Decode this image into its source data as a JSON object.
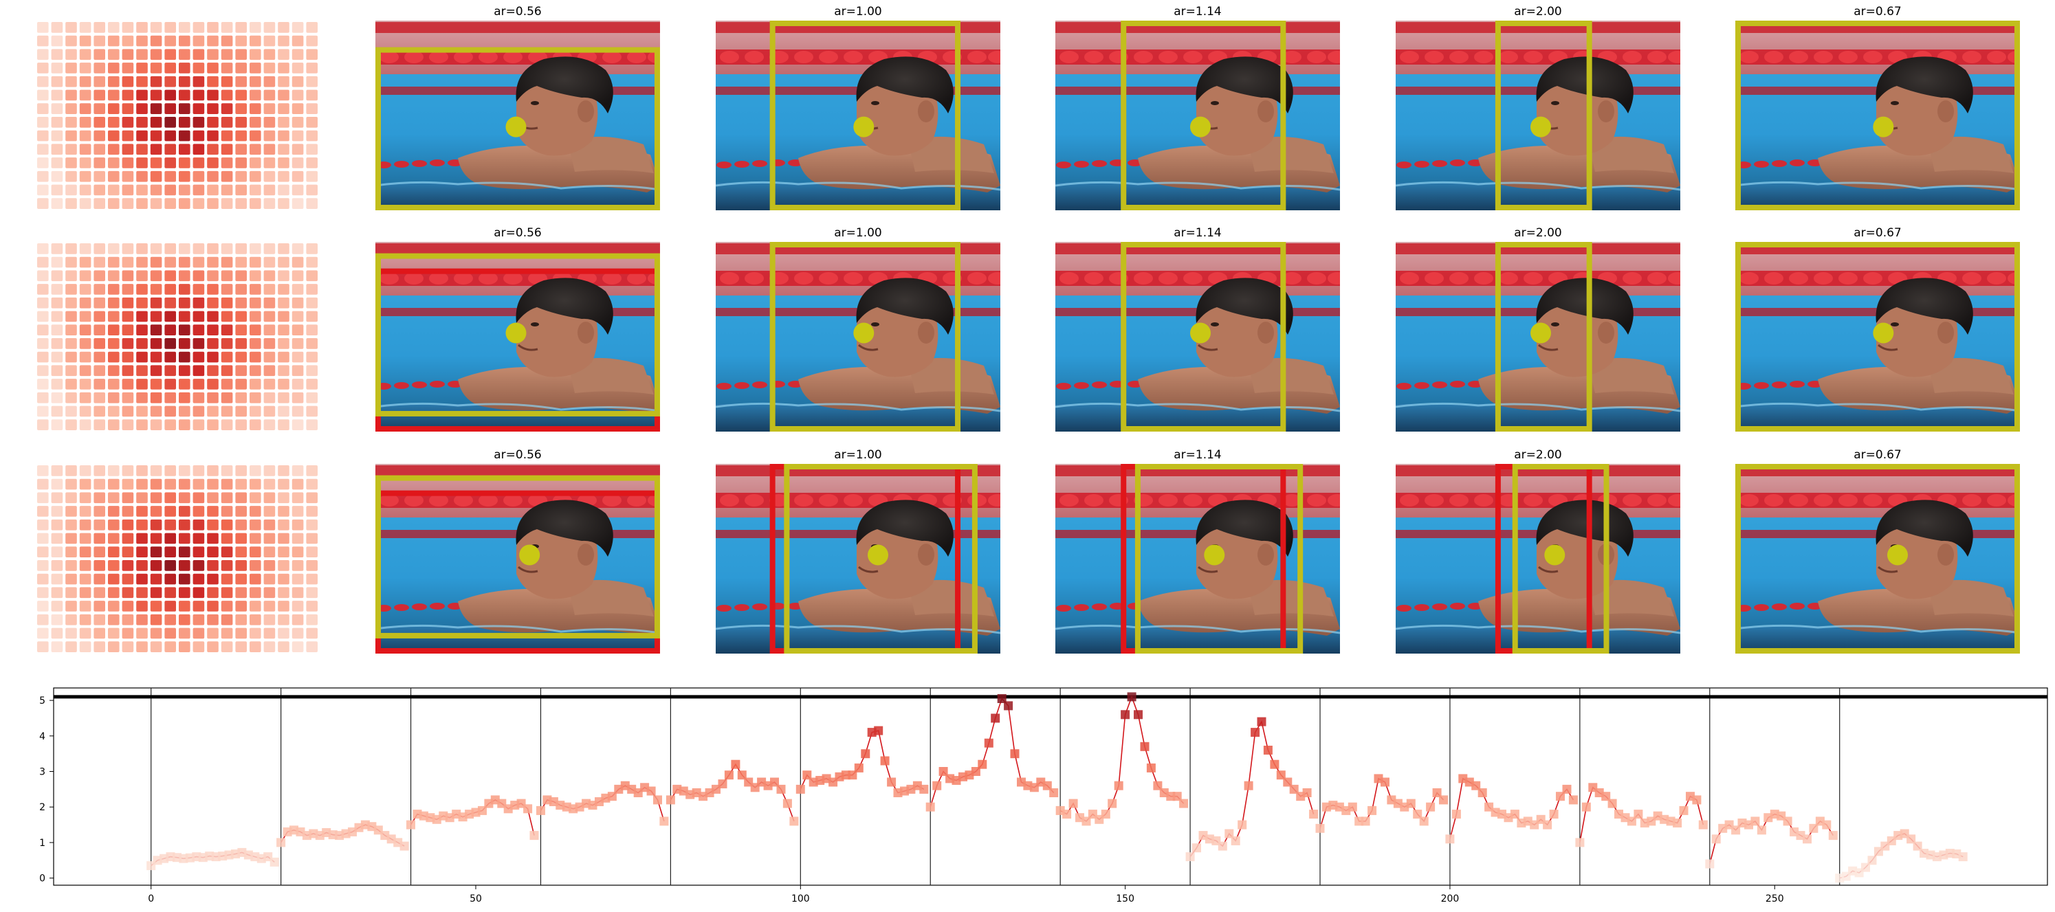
{
  "panels": {
    "rows": [
      {
        "heatmap_name": "saliency-heatmap-row-1",
        "crops": [
          {
            "title": "ar=0.56",
            "yellow": [
              0,
              0.14,
              1.0,
              1.0
            ],
            "red": null
          },
          {
            "title": "ar=1.00",
            "yellow": [
              0.19,
              0,
              0.86,
              1.0
            ],
            "red": null
          },
          {
            "title": "ar=1.14",
            "yellow": [
              0.23,
              0,
              0.81,
              1.0
            ],
            "red": null
          },
          {
            "title": "ar=2.00",
            "yellow": [
              0.35,
              0,
              0.69,
              1.0
            ],
            "red": null
          },
          {
            "title": "ar=0.67",
            "yellow": [
              0,
              0,
              1.0,
              1.0
            ],
            "red": null
          }
        ],
        "face_dot": [
          0.52,
          0.56
        ]
      },
      {
        "heatmap_name": "saliency-heatmap-row-2",
        "crops": [
          {
            "title": "ar=0.56",
            "yellow": [
              0,
              0.06,
              1.0,
              0.92
            ],
            "red": [
              0,
              0.14,
              1.0,
              1.0
            ]
          },
          {
            "title": "ar=1.00",
            "yellow": [
              0.19,
              0,
              0.86,
              1.0
            ],
            "red": null
          },
          {
            "title": "ar=1.14",
            "yellow": [
              0.23,
              0,
              0.81,
              1.0
            ],
            "red": null
          },
          {
            "title": "ar=2.00",
            "yellow": [
              0.35,
              0,
              0.69,
              1.0
            ],
            "red": null
          },
          {
            "title": "ar=0.67",
            "yellow": [
              0,
              0,
              1.0,
              1.0
            ],
            "red": null
          }
        ],
        "face_dot": [
          0.52,
          0.48
        ]
      },
      {
        "heatmap_name": "saliency-heatmap-row-3",
        "crops": [
          {
            "title": "ar=0.56",
            "yellow": [
              0,
              0.06,
              1.0,
              0.92
            ],
            "red": [
              0,
              0.14,
              1.0,
              1.0
            ]
          },
          {
            "title": "ar=1.00",
            "yellow": [
              0.24,
              0,
              0.92,
              1.0
            ],
            "red": [
              0.19,
              0,
              0.86,
              1.0
            ]
          },
          {
            "title": "ar=1.14",
            "yellow": [
              0.28,
              0,
              0.87,
              1.0
            ],
            "red": [
              0.23,
              0,
              0.81,
              1.0
            ]
          },
          {
            "title": "ar=2.00",
            "yellow": [
              0.41,
              0,
              0.75,
              1.0
            ],
            "red": [
              0.35,
              0,
              0.69,
              1.0
            ]
          },
          {
            "title": "ar=0.67",
            "yellow": [
              0,
              0,
              1.0,
              1.0
            ],
            "red": null
          }
        ],
        "face_dot": [
          0.57,
          0.48
        ]
      }
    ],
    "colors": {
      "yellow": "#c2be1c",
      "red": "#e0161a",
      "dot": "#c9c814"
    }
  },
  "chart_data": {
    "type": "line",
    "title": "",
    "xlabel": "",
    "ylabel": "",
    "xlim": [
      -15,
      292
    ],
    "ylim": [
      -0.2,
      5.35
    ],
    "xticks": [
      0,
      50,
      100,
      150,
      200,
      250
    ],
    "yticks": [
      0,
      1,
      2,
      3,
      4,
      5
    ],
    "hline": 5.1,
    "vlines": [
      0,
      20,
      40,
      60,
      80,
      100,
      120,
      140,
      160,
      180,
      200,
      220,
      240,
      260
    ],
    "x_start": 0,
    "series": [
      {
        "values": [
          0.35,
          0.5,
          0.55,
          0.6,
          0.58,
          0.55,
          0.57,
          0.6,
          0.58,
          0.62,
          0.6,
          0.62,
          0.65,
          0.68,
          0.72,
          0.65,
          0.6,
          0.55,
          0.6,
          0.45,
          1.0,
          1.3,
          1.35,
          1.3,
          1.2,
          1.25,
          1.2,
          1.28,
          1.22,
          1.2,
          1.25,
          1.3,
          1.42,
          1.5,
          1.45,
          1.35,
          1.2,
          1.1,
          1.0,
          0.9,
          1.5,
          1.8,
          1.75,
          1.7,
          1.65,
          1.75,
          1.7,
          1.8,
          1.72,
          1.8,
          1.85,
          1.9,
          2.1,
          2.2,
          2.1,
          1.95,
          2.05,
          2.1,
          1.95,
          1.2,
          1.9,
          2.2,
          2.15,
          2.05,
          2.0,
          1.95,
          2.0,
          2.1,
          2.05,
          2.15,
          2.25,
          2.3,
          2.5,
          2.6,
          2.5,
          2.4,
          2.55,
          2.45,
          2.2,
          1.6,
          2.2,
          2.5,
          2.45,
          2.35,
          2.4,
          2.3,
          2.4,
          2.5,
          2.65,
          2.9,
          3.2,
          2.9,
          2.7,
          2.55,
          2.7,
          2.6,
          2.7,
          2.5,
          2.1,
          1.6,
          2.5,
          2.9,
          2.7,
          2.75,
          2.8,
          2.7,
          2.85,
          2.9,
          2.9,
          3.1,
          3.5,
          4.1,
          4.15,
          3.3,
          2.7,
          2.4,
          2.45,
          2.5,
          2.6,
          2.5,
          2.0,
          2.6,
          3.0,
          2.8,
          2.75,
          2.85,
          2.9,
          3.0,
          3.2,
          3.8,
          4.5,
          5.05,
          4.85,
          3.5,
          2.7,
          2.6,
          2.55,
          2.7,
          2.6,
          2.4,
          1.9,
          1.8,
          2.1,
          1.7,
          1.6,
          1.8,
          1.65,
          1.8,
          2.1,
          2.6,
          4.6,
          5.1,
          4.6,
          3.7,
          3.1,
          2.6,
          2.4,
          2.3,
          2.3,
          2.1,
          0.6,
          0.85,
          1.2,
          1.1,
          1.05,
          0.9,
          1.25,
          1.05,
          1.5,
          2.6,
          4.1,
          4.4,
          3.6,
          3.2,
          2.9,
          2.7,
          2.5,
          2.3,
          2.4,
          1.8,
          1.4,
          2.0,
          2.05,
          2.0,
          1.9,
          2.0,
          1.6,
          1.6,
          1.9,
          2.8,
          2.7,
          2.2,
          2.1,
          2.0,
          2.1,
          1.8,
          1.6,
          2.0,
          2.4,
          2.2,
          1.1,
          1.8,
          2.8,
          2.7,
          2.6,
          2.4,
          2.0,
          1.85,
          1.8,
          1.7,
          1.8,
          1.55,
          1.6,
          1.5,
          1.65,
          1.5,
          1.8,
          2.3,
          2.5,
          2.2,
          1.0,
          2.0,
          2.55,
          2.4,
          2.3,
          2.1,
          1.8,
          1.7,
          1.6,
          1.8,
          1.55,
          1.6,
          1.75,
          1.65,
          1.6,
          1.55,
          1.9,
          2.3,
          2.2,
          1.5,
          0.4,
          1.1,
          1.4,
          1.5,
          1.35,
          1.55,
          1.5,
          1.6,
          1.35,
          1.7,
          1.8,
          1.75,
          1.6,
          1.3,
          1.2,
          1.1,
          1.4,
          1.6,
          1.5,
          1.2,
          0.0,
          0.05,
          0.2,
          0.15,
          0.3,
          0.5,
          0.75,
          0.9,
          1.05,
          1.2,
          1.25,
          1.1,
          0.9,
          0.7,
          0.65,
          0.6,
          0.65,
          0.7,
          0.68,
          0.6
        ]
      }
    ]
  }
}
